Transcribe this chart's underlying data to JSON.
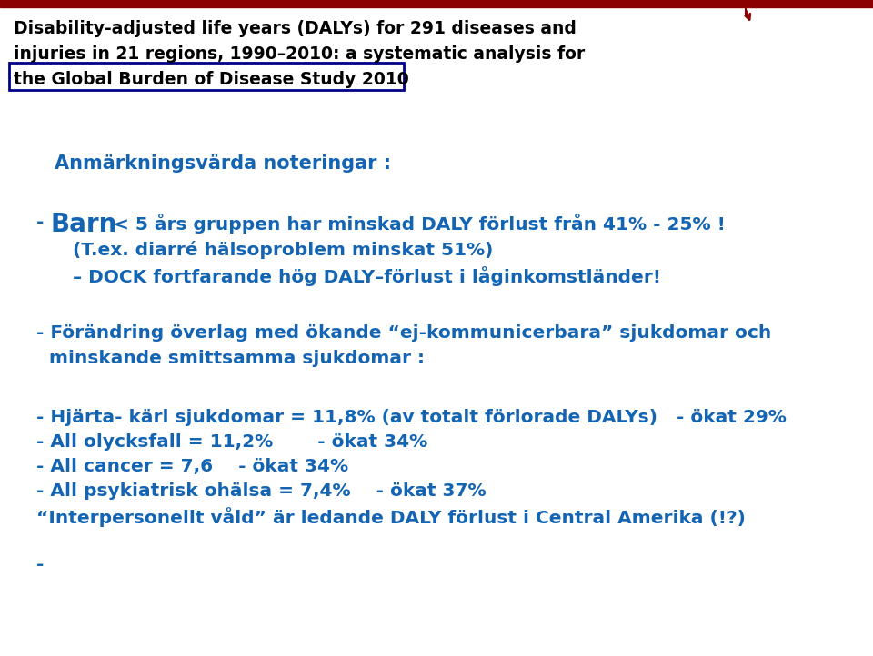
{
  "bg_color": "#ffffff",
  "top_bar_color": "#8B0000",
  "header_text_line1": "Disability-adjusted life years (DALYs) for 291 diseases and",
  "header_text_line2": "injuries in 21 regions, 1990–2010: a systematic analysis for",
  "header_text_line3": "the Global Burden of Disease Study 2010",
  "header_color": "#000000",
  "header_box_color": "#00008B",
  "blue_color": "#1464B4",
  "section_title": "Anmärkningsvärda noteringar :",
  "bullet1_bold": "Barn",
  "bullet1_rest": " < 5 års gruppen har minskad DALY förlust från 41% - 25% !",
  "bullet1_sub1": "(T.ex. diarré hälsoproblem minskat 51%)",
  "bullet1_sub2": "– DOCK fortfarande hög DALY–förlust i låginkomstländer!",
  "bullet2_line1": "- Förändring överlag med ökande “ej-kommunicerbara” sjukdomar och",
  "bullet2_line2": "  minskande smittsamma sjukdomar :",
  "bullet3_line1": "- Hjärta- kärl sjukdomar = 11,8% (av totalt förlorade DALYs)   - ökat 29%",
  "bullet3_line2": "- All olycksfall = 11,2%       - ökat 34%",
  "bullet3_line3": "- All cancer = 7,6    - ökat 34%",
  "bullet3_line4": "- All psykiatrisk ohälsa = 7,4%    - ökat 37%",
  "bullet3_line5": "“Interpersonellt våld” är ledande DALY förlust i Central Amerika (!?)",
  "dash_at_bottom": "-",
  "top_bar_height": 8,
  "header_font_size": 13.5,
  "body_font_size": 14.5,
  "barn_font_size": 20,
  "section_font_size": 15
}
